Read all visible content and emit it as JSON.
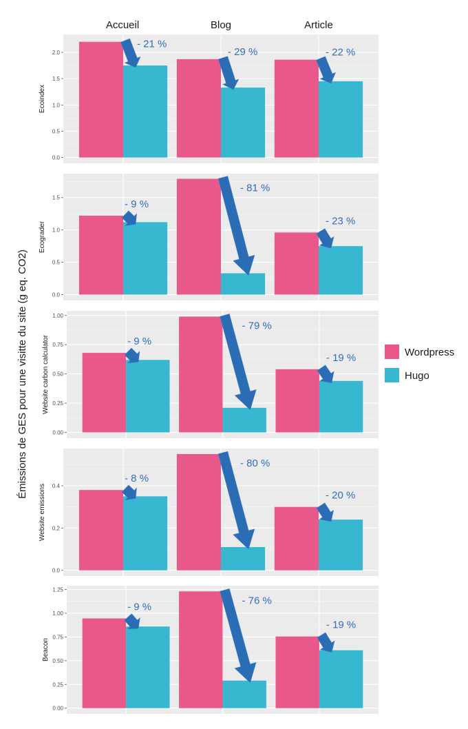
{
  "chart_data": {
    "type": "bar",
    "title": "",
    "ylabel": "Émissions de GES pour une visitte du site (g eq. CO2)",
    "categories": [
      "Accueil",
      "Blog",
      "Article"
    ],
    "legend": {
      "position": "right",
      "entries": [
        "Wordpress",
        "Hugo"
      ]
    },
    "colors": {
      "Wordpress": "#E8588A",
      "Hugo": "#37B8D0",
      "arrow": "#2A6DB5",
      "panel": "#EBEBEB"
    },
    "facets": [
      {
        "name": "Ecoindex",
        "ylim": [
          -0.11,
          2.34
        ],
        "ticks": [
          0,
          0.5,
          1,
          1.5,
          2
        ],
        "tick_labels": [
          "0.0",
          "0.5",
          "1.0",
          "1.5",
          "2.0"
        ],
        "series": [
          {
            "name": "Wordpress",
            "values": [
              2.2,
              1.87,
              1.86
            ]
          },
          {
            "name": "Hugo",
            "values": [
              1.75,
              1.33,
              1.45
            ]
          }
        ],
        "annotations": [
          "- 21 %",
          "- 29 %",
          "- 22 %"
        ]
      },
      {
        "name": "Ecograder",
        "ylim": [
          -0.09,
          1.87
        ],
        "ticks": [
          0,
          0.5,
          1,
          1.5
        ],
        "tick_labels": [
          "0.0",
          "0.5",
          "1.0",
          "1.5"
        ],
        "series": [
          {
            "name": "Wordpress",
            "values": [
              1.22,
              1.79,
              0.96
            ]
          },
          {
            "name": "Hugo",
            "values": [
              1.12,
              0.33,
              0.75
            ]
          }
        ],
        "annotations": [
          "- 9 %",
          "- 81 %",
          "- 23 %"
        ]
      },
      {
        "name": "Website carbon calculator",
        "ylim": [
          -0.05,
          1.04
        ],
        "ticks": [
          0,
          0.25,
          0.5,
          0.75,
          1
        ],
        "tick_labels": [
          "0.00",
          "0.25",
          "0.50",
          "0.75",
          "1.00"
        ],
        "series": [
          {
            "name": "Wordpress",
            "values": [
              0.68,
              0.99,
              0.54
            ]
          },
          {
            "name": "Hugo",
            "values": [
              0.62,
              0.21,
              0.44
            ]
          }
        ],
        "annotations": [
          "- 9 %",
          "- 79 %",
          "- 19 %"
        ]
      },
      {
        "name": "Website emissions",
        "ylim": [
          -0.027,
          0.576
        ],
        "ticks": [
          0,
          0.2,
          0.4
        ],
        "tick_labels": [
          "0.0",
          "0.2",
          "0.4"
        ],
        "series": [
          {
            "name": "Wordpress",
            "values": [
              0.38,
              0.55,
              0.3
            ]
          },
          {
            "name": "Hugo",
            "values": [
              0.35,
              0.11,
              0.24
            ]
          }
        ],
        "annotations": [
          "- 8 %",
          "- 80 %",
          "- 20 %"
        ]
      },
      {
        "name": "Beacon",
        "ylim": [
          -0.06,
          1.29
        ],
        "ticks": [
          0,
          0.25,
          0.5,
          0.75,
          1,
          1.25
        ],
        "tick_labels": [
          "0.00",
          "0.25",
          "0.50",
          "0.75",
          "1.00",
          "1.25"
        ],
        "series": [
          {
            "name": "Wordpress",
            "values": [
              0.945,
              1.23,
              0.755
            ]
          },
          {
            "name": "Hugo",
            "values": [
              0.86,
              0.29,
              0.61
            ]
          }
        ],
        "annotations": [
          "- 9 %",
          "- 76 %",
          "- 19 %"
        ]
      }
    ]
  }
}
